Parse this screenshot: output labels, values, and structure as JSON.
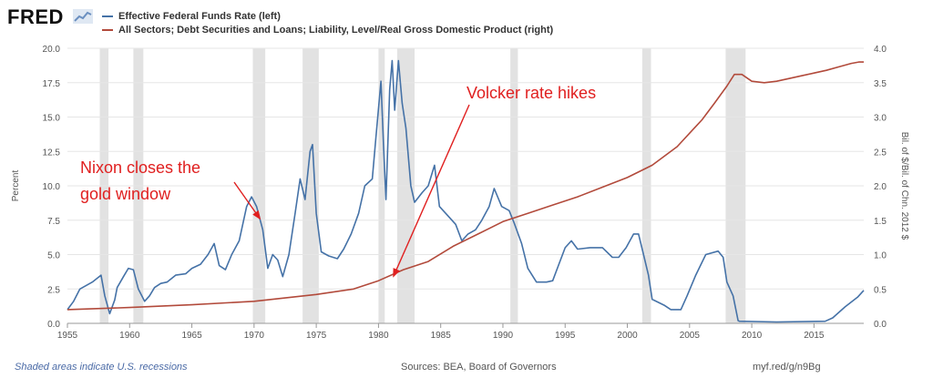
{
  "brand": {
    "logo_text": "FRED"
  },
  "footer": {
    "recession_note": "Shaded areas indicate U.S. recessions",
    "sources": "Sources: BEA, Board of Governors",
    "link": "myf.red/g/n9Bg"
  },
  "colors": {
    "left_series": "#4572a7",
    "right_series": "#b24a3b",
    "recession": "#e2e2e2",
    "annotation": "#e02020"
  },
  "chart_data": {
    "type": "line",
    "xlim": [
      1955,
      2019
    ],
    "x_ticks": [
      1955,
      1960,
      1965,
      1970,
      1975,
      1980,
      1985,
      1990,
      1995,
      2000,
      2005,
      2010,
      2015
    ],
    "y_left": {
      "label": "Percent",
      "lim": [
        0,
        20
      ],
      "ticks": [
        "0.0",
        "2.5",
        "5.0",
        "7.5",
        "10.0",
        "12.5",
        "15.0",
        "17.5",
        "20.0"
      ]
    },
    "y_right": {
      "label": "Bil. of $/Bil. of Chn. 2012 $",
      "lim": [
        0,
        4
      ],
      "ticks": [
        "0.0",
        "0.5",
        "1.0",
        "1.5",
        "2.0",
        "2.5",
        "3.0",
        "3.5",
        "4.0"
      ]
    },
    "recessions": [
      [
        1957.6,
        1958.3
      ],
      [
        1960.3,
        1961.1
      ],
      [
        1969.9,
        1970.9
      ],
      [
        1973.9,
        1975.2
      ],
      [
        1980.0,
        1980.5
      ],
      [
        1981.5,
        1982.9
      ],
      [
        1990.6,
        1991.2
      ],
      [
        2001.2,
        2001.9
      ],
      [
        2007.9,
        2009.5
      ]
    ],
    "series": [
      {
        "name": "Effective Federal Funds Rate (left)",
        "axis": "left",
        "color": "#4572a7",
        "points": [
          [
            1955,
            1.0
          ],
          [
            1955.5,
            1.6
          ],
          [
            1956,
            2.5
          ],
          [
            1957,
            3.0
          ],
          [
            1957.7,
            3.5
          ],
          [
            1958,
            2.0
          ],
          [
            1958.4,
            0.7
          ],
          [
            1958.8,
            1.7
          ],
          [
            1959,
            2.6
          ],
          [
            1959.5,
            3.4
          ],
          [
            1959.9,
            4.0
          ],
          [
            1960.3,
            3.9
          ],
          [
            1960.7,
            2.5
          ],
          [
            1961.2,
            1.6
          ],
          [
            1961.6,
            2.0
          ],
          [
            1962,
            2.6
          ],
          [
            1962.5,
            2.9
          ],
          [
            1963,
            3.0
          ],
          [
            1963.7,
            3.5
          ],
          [
            1964.5,
            3.6
          ],
          [
            1965,
            4.0
          ],
          [
            1965.7,
            4.3
          ],
          [
            1966.3,
            5.0
          ],
          [
            1966.8,
            5.8
          ],
          [
            1967.2,
            4.2
          ],
          [
            1967.7,
            3.9
          ],
          [
            1968.2,
            5.0
          ],
          [
            1968.8,
            6.0
          ],
          [
            1969.4,
            8.5
          ],
          [
            1969.8,
            9.2
          ],
          [
            1970.2,
            8.5
          ],
          [
            1970.7,
            6.8
          ],
          [
            1971.1,
            4.0
          ],
          [
            1971.5,
            5.0
          ],
          [
            1971.9,
            4.6
          ],
          [
            1972.3,
            3.4
          ],
          [
            1972.8,
            5.0
          ],
          [
            1973.3,
            8.0
          ],
          [
            1973.7,
            10.5
          ],
          [
            1974.1,
            9.0
          ],
          [
            1974.5,
            12.5
          ],
          [
            1974.7,
            13.0
          ],
          [
            1975.0,
            8.0
          ],
          [
            1975.4,
            5.2
          ],
          [
            1976,
            4.9
          ],
          [
            1976.7,
            4.7
          ],
          [
            1977.2,
            5.4
          ],
          [
            1977.8,
            6.5
          ],
          [
            1978.4,
            8.0
          ],
          [
            1978.9,
            10.0
          ],
          [
            1979.5,
            10.5
          ],
          [
            1979.8,
            13.6
          ],
          [
            1980.2,
            17.6
          ],
          [
            1980.4,
            13.0
          ],
          [
            1980.6,
            9.0
          ],
          [
            1980.9,
            17.0
          ],
          [
            1981.1,
            19.1
          ],
          [
            1981.3,
            15.5
          ],
          [
            1981.6,
            19.1
          ],
          [
            1981.9,
            16.0
          ],
          [
            1982.2,
            14.2
          ],
          [
            1982.6,
            10.0
          ],
          [
            1982.9,
            8.8
          ],
          [
            1983.5,
            9.5
          ],
          [
            1984.0,
            10.0
          ],
          [
            1984.5,
            11.5
          ],
          [
            1984.9,
            8.5
          ],
          [
            1985.5,
            7.9
          ],
          [
            1986.2,
            7.2
          ],
          [
            1986.7,
            6.0
          ],
          [
            1987.2,
            6.5
          ],
          [
            1987.8,
            6.8
          ],
          [
            1988.3,
            7.5
          ],
          [
            1988.9,
            8.5
          ],
          [
            1989.3,
            9.8
          ],
          [
            1989.9,
            8.5
          ],
          [
            1990.5,
            8.2
          ],
          [
            1990.9,
            7.3
          ],
          [
            1991.5,
            5.8
          ],
          [
            1992,
            4.0
          ],
          [
            1992.7,
            3.0
          ],
          [
            1993.5,
            3.0
          ],
          [
            1994,
            3.1
          ],
          [
            1994.5,
            4.3
          ],
          [
            1995,
            5.5
          ],
          [
            1995.5,
            6.0
          ],
          [
            1996,
            5.4
          ],
          [
            1997,
            5.5
          ],
          [
            1998,
            5.5
          ],
          [
            1998.8,
            4.8
          ],
          [
            1999.3,
            4.8
          ],
          [
            1999.9,
            5.5
          ],
          [
            2000.5,
            6.5
          ],
          [
            2000.9,
            6.5
          ],
          [
            2001.3,
            5.0
          ],
          [
            2001.7,
            3.5
          ],
          [
            2002,
            1.75
          ],
          [
            2003,
            1.3
          ],
          [
            2003.5,
            1.0
          ],
          [
            2004.3,
            1.0
          ],
          [
            2004.8,
            2.0
          ],
          [
            2005.5,
            3.5
          ],
          [
            2006.3,
            5.0
          ],
          [
            2007.3,
            5.25
          ],
          [
            2007.7,
            4.8
          ],
          [
            2008,
            3.0
          ],
          [
            2008.5,
            2.0
          ],
          [
            2008.9,
            0.2
          ],
          [
            2009,
            0.15
          ],
          [
            2012,
            0.1
          ],
          [
            2015.9,
            0.15
          ],
          [
            2016.5,
            0.4
          ],
          [
            2017.5,
            1.2
          ],
          [
            2018.5,
            1.9
          ],
          [
            2019,
            2.4
          ]
        ]
      },
      {
        "name": "All Sectors; Debt Securities and Loans; Liability, Level/Real Gross Domestic Product (right)",
        "axis": "right",
        "color": "#b24a3b",
        "points": [
          [
            1955,
            0.2
          ],
          [
            1960,
            0.23
          ],
          [
            1965,
            0.27
          ],
          [
            1970,
            0.32
          ],
          [
            1975,
            0.42
          ],
          [
            1978,
            0.5
          ],
          [
            1980,
            0.62
          ],
          [
            1982,
            0.78
          ],
          [
            1984,
            0.9
          ],
          [
            1986,
            1.12
          ],
          [
            1988,
            1.3
          ],
          [
            1990,
            1.48
          ],
          [
            1992,
            1.6
          ],
          [
            1994,
            1.72
          ],
          [
            1996,
            1.84
          ],
          [
            1998,
            1.98
          ],
          [
            2000,
            2.12
          ],
          [
            2002,
            2.3
          ],
          [
            2004,
            2.57
          ],
          [
            2006,
            2.96
          ],
          [
            2007,
            3.2
          ],
          [
            2008,
            3.45
          ],
          [
            2008.6,
            3.62
          ],
          [
            2009.2,
            3.62
          ],
          [
            2010,
            3.52
          ],
          [
            2011,
            3.5
          ],
          [
            2012,
            3.52
          ],
          [
            2013,
            3.56
          ],
          [
            2014,
            3.6
          ],
          [
            2015,
            3.64
          ],
          [
            2016,
            3.68
          ],
          [
            2017,
            3.73
          ],
          [
            2018,
            3.78
          ],
          [
            2018.6,
            3.8
          ],
          [
            2019,
            3.8
          ]
        ]
      }
    ],
    "annotations": [
      {
        "text": "Nixon closes the",
        "text2": "gold window",
        "x": 1970.6,
        "y": 1.5
      },
      {
        "text": "Volcker rate hikes",
        "x": 1981.0,
        "y": 3.5
      }
    ]
  }
}
